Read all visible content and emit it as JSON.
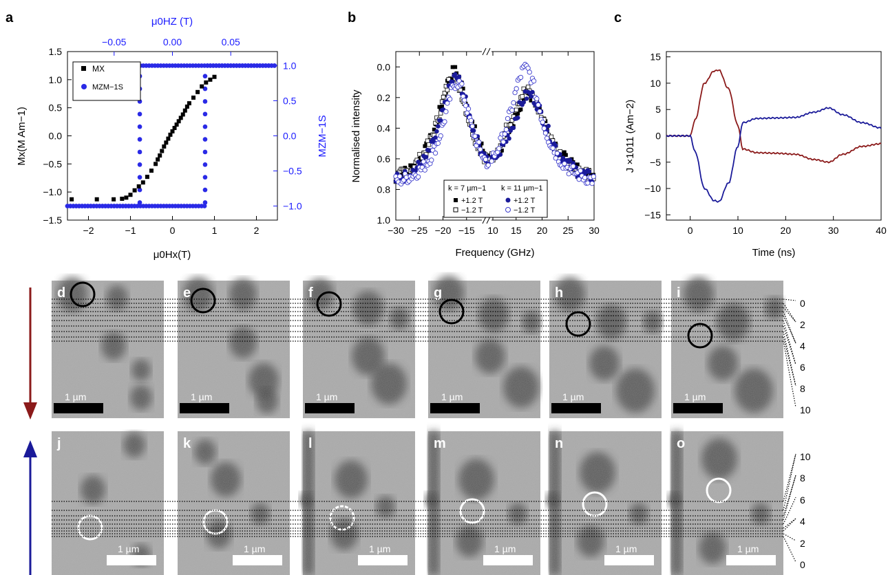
{
  "panel_letters": [
    "a",
    "b",
    "c",
    "d",
    "e",
    "f",
    "g",
    "h",
    "i",
    "j",
    "k",
    "l",
    "m",
    "n",
    "o"
  ],
  "colors": {
    "black": "#000000",
    "blue_axis": "#1a1aff",
    "blue_data": "#2a2ae6",
    "dark_blue": "#1a1a99",
    "dark_red": "#8b1a1a",
    "open_blue": "#3a3acc"
  },
  "chart_data": [
    {
      "panel": "a",
      "type": "scatter",
      "xlabel": "μ0Hx(T)",
      "top_xlabel": "μ0HZ (T)",
      "ylabel": "Mx(M Am−1)",
      "right_ylabel": "MZM−1S",
      "xlim": [
        -2.5,
        2.5
      ],
      "ylim": [
        -1.5,
        1.5
      ],
      "top_xlim": [
        -0.09,
        0.09
      ],
      "right_ylim": [
        -1.2,
        1.2
      ],
      "xticks": [
        "−2",
        "−1",
        "0",
        "1",
        "2"
      ],
      "yticks": [
        "1.5",
        "1.0",
        "0.5",
        "0.0",
        "−0.5",
        "−1.0",
        "−1.5"
      ],
      "top_xticks": [
        "−0.05",
        "0.00",
        "0.05"
      ],
      "right_yticks": [
        "1.0",
        "0.5",
        "0.0",
        "−0.5",
        "−1.0"
      ],
      "legend": [
        "MX",
        "MZM−1S"
      ],
      "legend_position": "top-left",
      "series": [
        {
          "name": "MX",
          "axis": "bottom-left",
          "x": [
            -2.4,
            -1.8,
            -1.4,
            -1.2,
            -1.1,
            -1.0,
            -0.9,
            -0.8,
            -0.7,
            -0.6,
            -0.5,
            -0.4,
            -0.35,
            -0.3,
            -0.25,
            -0.2,
            -0.15,
            -0.1,
            -0.05,
            0.0,
            0.05,
            0.1,
            0.15,
            0.2,
            0.25,
            0.3,
            0.35,
            0.4,
            0.5,
            0.6,
            0.7,
            0.8,
            0.9,
            1.0
          ],
          "y": [
            -1.13,
            -1.13,
            -1.13,
            -1.12,
            -1.1,
            -1.05,
            -0.97,
            -0.9,
            -0.83,
            -0.73,
            -0.62,
            -0.5,
            -0.42,
            -0.35,
            -0.27,
            -0.19,
            -0.12,
            -0.05,
            0.02,
            0.08,
            0.14,
            0.2,
            0.26,
            0.32,
            0.38,
            0.45,
            0.52,
            0.58,
            0.68,
            0.78,
            0.88,
            0.95,
            1.0,
            1.05
          ]
        },
        {
          "name": "MZM−1S",
          "axis": "top-right",
          "x": [
            -0.095,
            -0.07,
            -0.05,
            -0.035,
            -0.03,
            -0.028,
            -0.027,
            -0.026,
            -0.025,
            -0.023,
            -0.02,
            -0.01,
            0.0,
            0.01,
            0.02,
            0.025,
            0.026,
            0.027,
            0.03,
            0.04,
            0.05,
            0.07,
            0.09
          ],
          "y": [
            1.0,
            1.0,
            1.0,
            1.0,
            1.0,
            0.95,
            0.6,
            0.3,
            0.0,
            0.0,
            -1.0,
            -1.0,
            -1.0,
            -1.0,
            -1.0,
            -1.0,
            -0.6,
            -0.3,
            0.0,
            0.0,
            1.0,
            1.0,
            1.0
          ]
        }
      ]
    },
    {
      "panel": "b",
      "type": "scatter",
      "xlabel": "Frequency (GHz)",
      "ylabel": "Normalised intensity",
      "xlim": [
        -30,
        30
      ],
      "ylim": [
        0.0,
        1.1
      ],
      "xticks": [
        "−30",
        "−25",
        "−20",
        "−15",
        "10",
        "15",
        "20",
        "25",
        "30"
      ],
      "yticks": [
        "0.0",
        "0.2",
        "0.4",
        "0.6",
        "0.8",
        "1.0"
      ],
      "legend_headers": [
        "k = 7 µm−1",
        "k = 11 µm−1"
      ],
      "legend": [
        "+1.2 T",
        "−1.2 T",
        "+1.2 T",
        "−1.2 T"
      ],
      "legend_position": "bottom-center",
      "peaks": [
        {
          "name": "k7 +1.2T",
          "center": -17.5,
          "height": 0.98
        },
        {
          "name": "k7 −1.2T",
          "center": -17.8,
          "height": 0.95
        },
        {
          "name": "k11 +1.2T",
          "center": 17.5,
          "height": 0.82
        },
        {
          "name": "k11 −1.2T",
          "center": 16.8,
          "height": 1.0
        }
      ]
    },
    {
      "panel": "c",
      "type": "line",
      "xlabel": "Time (ns)",
      "ylabel": "J ×1011 (Am−2)",
      "xlim": [
        -5,
        40
      ],
      "ylim": [
        -16,
        16
      ],
      "xticks": [
        "0",
        "10",
        "20",
        "30",
        "40"
      ],
      "yticks": [
        "15",
        "10",
        "5",
        "0",
        "−5",
        "−10",
        "−15"
      ],
      "series": [
        {
          "color": "dark_red",
          "x": [
            -5,
            0,
            1,
            3,
            5,
            6,
            8,
            10,
            11,
            14,
            18,
            22,
            26,
            29,
            32,
            36,
            40
          ],
          "y": [
            0,
            0,
            3,
            10,
            12.3,
            12.5,
            9,
            2,
            -2.5,
            -3.2,
            -3.3,
            -3.5,
            -4.5,
            -5,
            -3.5,
            -2,
            -1.5
          ]
        },
        {
          "color": "dark_blue",
          "x": [
            -5,
            0,
            1,
            3,
            5,
            6,
            8,
            10,
            11,
            14,
            18,
            22,
            26,
            29,
            32,
            36,
            40
          ],
          "y": [
            0,
            0,
            -3,
            -10,
            -12.3,
            -12.5,
            -9,
            -2,
            2.5,
            3.3,
            3.4,
            3.5,
            4.5,
            5.3,
            4,
            2.5,
            1.5
          ]
        }
      ]
    }
  ],
  "images_top": {
    "labels": [
      "d",
      "e",
      "f",
      "g",
      "h",
      "i"
    ],
    "scale_bar": "1 µm",
    "line_scale": [
      "0",
      "2",
      "4",
      "6",
      "8",
      "10"
    ]
  },
  "images_bottom": {
    "labels": [
      "j",
      "k",
      "l",
      "m",
      "n",
      "o"
    ],
    "scale_bar": "1 µm",
    "line_scale": [
      "10",
      "8",
      "6",
      "4",
      "2",
      "0"
    ]
  }
}
